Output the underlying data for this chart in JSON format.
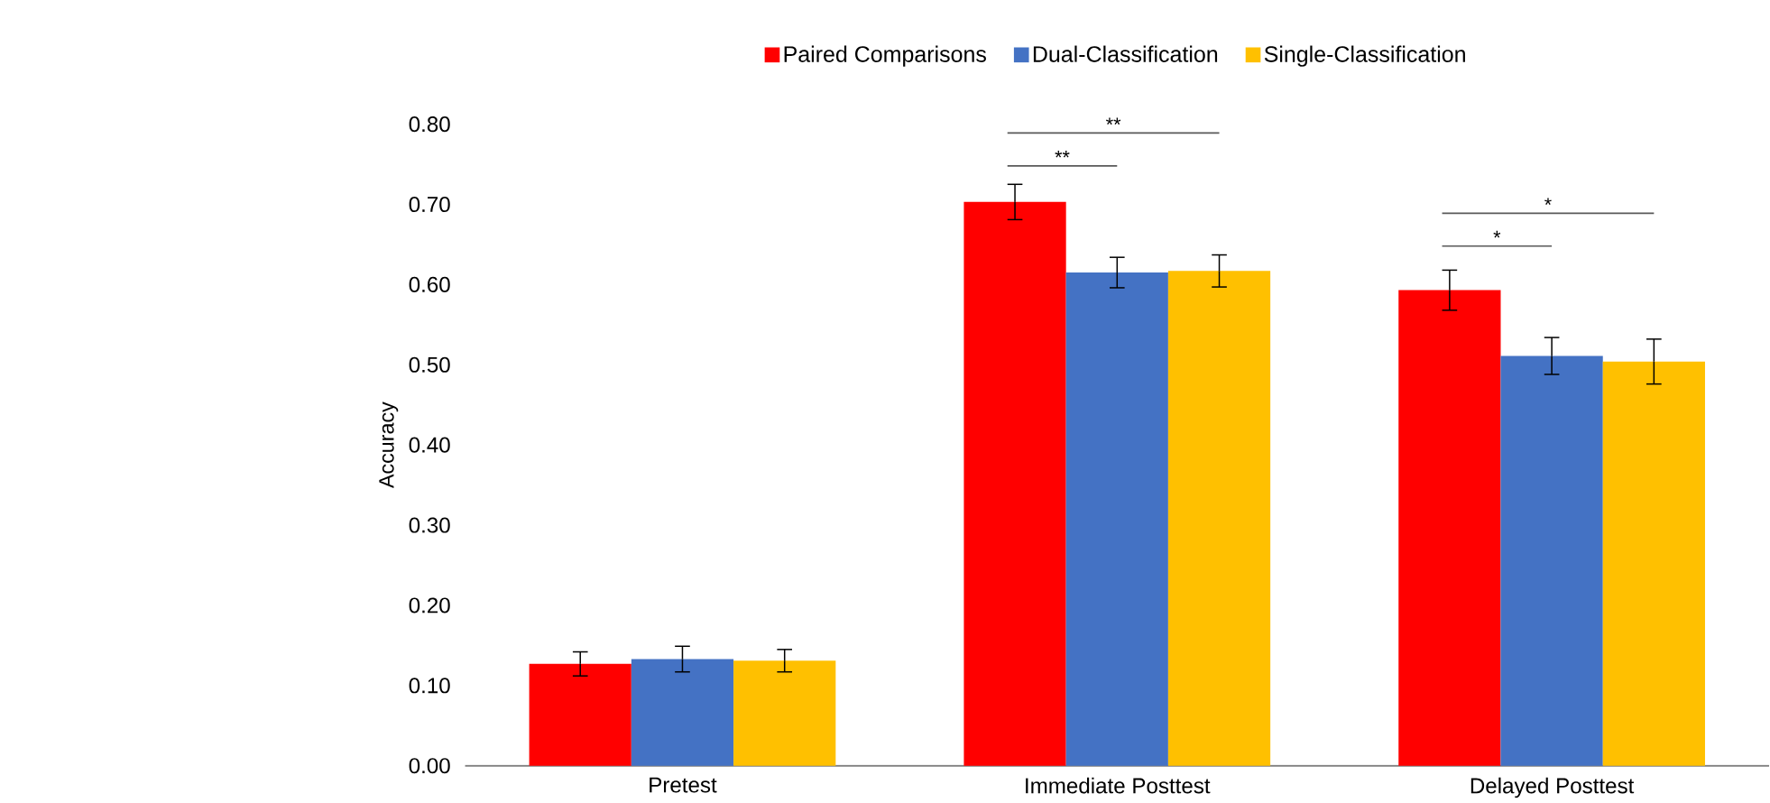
{
  "chart_data": {
    "type": "bar",
    "ylabel": "Accuracy",
    "categories": [
      "Pretest",
      "Immediate Posttest",
      "Delayed Posttest"
    ],
    "series": [
      {
        "name": "Paired Comparisons",
        "color": "#ff0000",
        "values": [
          0.127,
          0.703,
          0.593
        ],
        "errors": [
          0.015,
          0.022,
          0.025
        ]
      },
      {
        "name": "Dual-Classification",
        "color": "#4472c4",
        "values": [
          0.133,
          0.615,
          0.511
        ],
        "errors": [
          0.016,
          0.019,
          0.023
        ]
      },
      {
        "name": "Single-Classification",
        "color": "#ffc000",
        "values": [
          0.131,
          0.617,
          0.504
        ],
        "errors": [
          0.014,
          0.02,
          0.028
        ]
      }
    ],
    "ylim": [
      0,
      0.8
    ],
    "yticks": [
      {
        "value": 0,
        "label": "0.00"
      },
      {
        "value": 0.1,
        "label": "0.10"
      },
      {
        "value": 0.2,
        "label": "0.20"
      },
      {
        "value": 0.3,
        "label": "0.30"
      },
      {
        "value": 0.4,
        "label": "0.40"
      },
      {
        "value": 0.5,
        "label": "0.50"
      },
      {
        "value": 0.6,
        "label": "0.60"
      },
      {
        "value": 0.7,
        "label": "0.70"
      },
      {
        "value": 0.8,
        "label": "0.80"
      }
    ],
    "annotations": [
      "**",
      "**",
      "*",
      "*"
    ],
    "grid": false,
    "legend": "top"
  }
}
